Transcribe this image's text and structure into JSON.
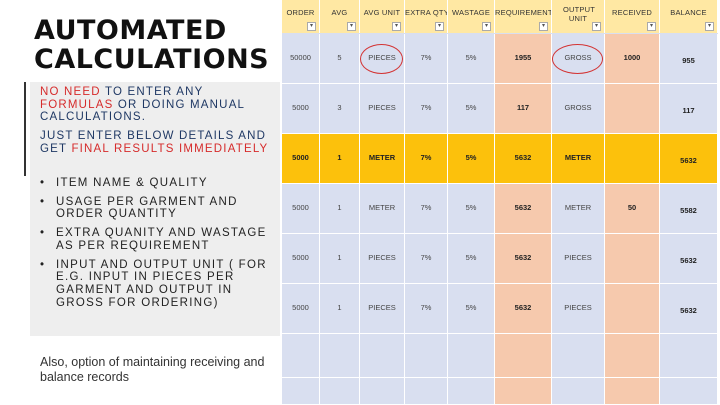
{
  "left": {
    "title_line1": "AUTOMATED",
    "title_line2": "CALCULATIONS",
    "para1": {
      "red1": "NO NEED",
      "t1": " TO ENTER ANY ",
      "red2": "FORMULAS",
      "t2": " OR DOING MANUAL CALCULATIONS."
    },
    "para2": {
      "t1": "JUST ENTER BELOW DETAILS AND GET ",
      "red1": "FINAL RESULTS IMMEDIATELY"
    },
    "bullets": [
      "ITEM NAME & QUALITY",
      "USAGE PER GARMENT AND ORDER QUANTITY",
      "EXTRA QUANITY AND WASTAGE AS PER REQUIREMENT",
      "INPUT AND OUTPUT UNIT ( FOR E.G. INPUT IN PIECES PER GARMENT AND OUTPUT IN GROSS FOR ORDERING)"
    ],
    "note": "Also, option of maintaining receiving and balance records"
  },
  "table": {
    "headers": [
      "ORDER",
      "AVG",
      "AVG UNIT",
      "EXTRA QTY",
      "WASTAGE",
      "REQUIREMENT",
      "OUTPUT UNIT",
      "RECEIVED",
      "BALANCE"
    ],
    "rows": [
      [
        "50000",
        "5",
        "PIECES",
        "7%",
        "5%",
        "1955",
        "GROSS",
        "1000",
        "955"
      ],
      [
        "5000",
        "3",
        "PIECES",
        "7%",
        "5%",
        "117",
        "GROSS",
        "",
        "117"
      ],
      [
        "5000",
        "1",
        "METER",
        "7%",
        "5%",
        "5632",
        "METER",
        "",
        "5632"
      ],
      [
        "5000",
        "1",
        "METER",
        "7%",
        "5%",
        "5632",
        "METER",
        "50",
        "5582"
      ],
      [
        "5000",
        "1",
        "PIECES",
        "7%",
        "5%",
        "5632",
        "PIECES",
        "",
        "5632"
      ],
      [
        "5000",
        "1",
        "PIECES",
        "7%",
        "5%",
        "5632",
        "PIECES",
        "",
        "5632"
      ],
      [
        "",
        "",
        "",
        "",
        "",
        "",
        "",
        "",
        ""
      ],
      [
        "",
        "",
        "",
        "",
        "",
        "",
        "",
        "",
        ""
      ]
    ],
    "highlight_row": 2,
    "dropdown_glyph": "▾",
    "colors": {
      "header": "#ffe8a3",
      "row": "#d9dff0",
      "requirement": "#f6c9ad",
      "highlight": "#fcc10c",
      "annotation": "#d33333",
      "accent_text": "#1f3864",
      "accent_red": "#d62b2b"
    }
  }
}
